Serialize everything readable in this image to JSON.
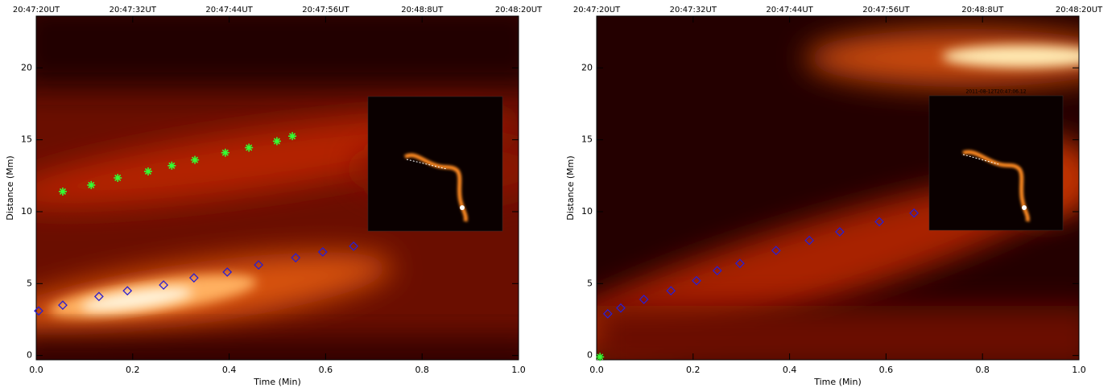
{
  "chart_data": [
    {
      "type": "scatter",
      "xlabel": "Time (Min)",
      "ylabel": "Distance (Mm)",
      "xlim": [
        0,
        1
      ],
      "ylim": [
        -0.3,
        23.6
      ],
      "xticks": [
        {
          "value": 0,
          "label": "0.0"
        },
        {
          "value": 0.2,
          "label": "0.2"
        },
        {
          "value": 0.4,
          "label": "0.4"
        },
        {
          "value": 0.6,
          "label": "0.6"
        },
        {
          "value": 0.8,
          "label": "0.8"
        },
        {
          "value": 1,
          "label": "1.0"
        }
      ],
      "x2ticks": [
        {
          "value": 0,
          "label": "20:47:20UT"
        },
        {
          "value": 0.2,
          "label": "20:47:32UT"
        },
        {
          "value": 0.4,
          "label": "20:47:44UT"
        },
        {
          "value": 0.6,
          "label": "20:47:56UT"
        },
        {
          "value": 0.8,
          "label": "20:48:8UT"
        },
        {
          "value": 1,
          "label": "20:48:20UT"
        }
      ],
      "yticks": [
        0,
        5,
        10,
        15,
        20
      ],
      "series": [
        {
          "marker": "asterisk",
          "color": "#33ff33",
          "x": [
            0.055,
            0.114,
            0.169,
            0.232,
            0.281,
            0.329,
            0.392,
            0.441,
            0.499,
            0.531
          ],
          "values": [
            11.4,
            11.85,
            12.35,
            12.8,
            13.2,
            13.6,
            14.1,
            14.45,
            14.9,
            15.25
          ]
        },
        {
          "marker": "diamond",
          "color": "#2a1fd0",
          "x": [
            0.005,
            0.055,
            0.13,
            0.189,
            0.264,
            0.327,
            0.396,
            0.461,
            0.538,
            0.594,
            0.658
          ],
          "values": [
            3.1,
            3.5,
            4.1,
            4.5,
            4.9,
            5.4,
            5.8,
            6.3,
            6.8,
            7.2,
            7.6
          ]
        }
      ]
    },
    {
      "type": "scatter",
      "xlabel": "Time (Min)",
      "ylabel": "Distance (Mm)",
      "inset_title": "2011-08-12T20:47:06.12",
      "xlim": [
        0,
        1
      ],
      "ylim": [
        -0.3,
        23.6
      ],
      "xticks": [
        {
          "value": 0,
          "label": "0.0"
        },
        {
          "value": 0.2,
          "label": "0.2"
        },
        {
          "value": 0.4,
          "label": "0.4"
        },
        {
          "value": 0.6,
          "label": "0.6"
        },
        {
          "value": 0.8,
          "label": "0.8"
        },
        {
          "value": 1,
          "label": "1.0"
        }
      ],
      "x2ticks": [
        {
          "value": 0,
          "label": "20:47:20UT"
        },
        {
          "value": 0.2,
          "label": "20:47:32UT"
        },
        {
          "value": 0.4,
          "label": "20:47:44UT"
        },
        {
          "value": 0.6,
          "label": "20:47:56UT"
        },
        {
          "value": 0.8,
          "label": "20:48:8UT"
        },
        {
          "value": 1,
          "label": "20:48:20UT"
        }
      ],
      "yticks": [
        0,
        5,
        10,
        15,
        20
      ],
      "series": [
        {
          "marker": "asterisk",
          "color": "#33ff33",
          "x": [
            0.007
          ],
          "values": [
            -0.1
          ]
        },
        {
          "marker": "diamond",
          "color": "#2a1fd0",
          "x": [
            0.023,
            0.05,
            0.098,
            0.154,
            0.207,
            0.25,
            0.297,
            0.372,
            0.441,
            0.504,
            0.586,
            0.658
          ],
          "values": [
            2.9,
            3.3,
            3.9,
            4.5,
            5.2,
            5.9,
            6.4,
            7.3,
            8.0,
            8.6,
            9.3,
            9.9
          ]
        }
      ]
    }
  ]
}
